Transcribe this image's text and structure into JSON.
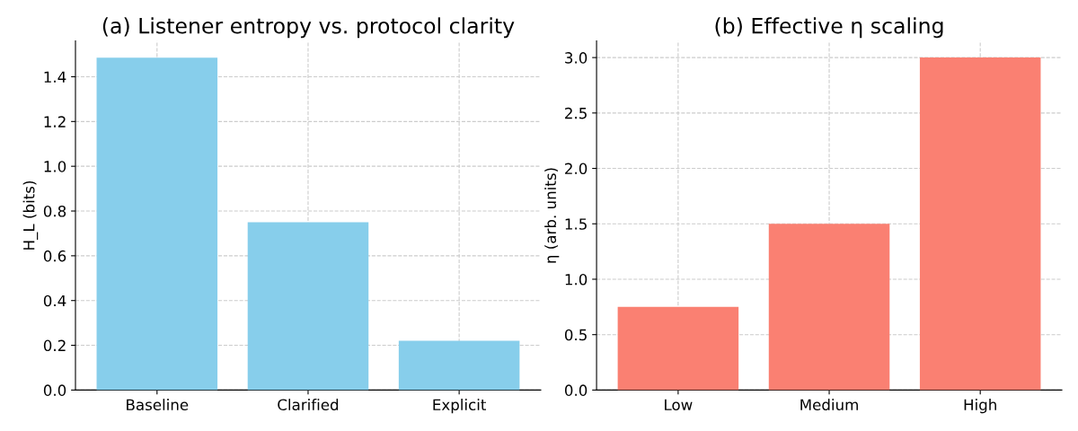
{
  "chart_data": [
    {
      "type": "bar",
      "title": "(a) Listener entropy vs. protocol clarity",
      "ylabel": "H_L (bits)",
      "categories": [
        "Baseline",
        "Clarified",
        "Explicit"
      ],
      "values": [
        1.485,
        0.75,
        0.22
      ],
      "color": "#87ceeb",
      "ylim": [
        0,
        1.56
      ],
      "yticks": [
        {
          "value": 0,
          "label": "0.0"
        },
        0.2,
        0.4,
        0.6,
        0.8,
        {
          "value": 1,
          "label": "1.0"
        },
        1.2,
        1.4
      ],
      "grid": true
    },
    {
      "type": "bar",
      "title": "(b) Effective η scaling",
      "ylabel": "η (arb. units)",
      "categories": [
        "Low",
        "Medium",
        "High"
      ],
      "values": [
        0.75,
        1.5,
        3.0
      ],
      "color": "#fa8072",
      "ylim": [
        0,
        3.15
      ],
      "yticks": [
        {
          "value": 0,
          "label": "0.0"
        },
        0.5,
        {
          "value": 1,
          "label": "1.0"
        },
        1.5,
        {
          "value": 2,
          "label": "2.0"
        },
        2.5,
        {
          "value": 3,
          "label": "3.0"
        }
      ],
      "grid": true
    }
  ]
}
